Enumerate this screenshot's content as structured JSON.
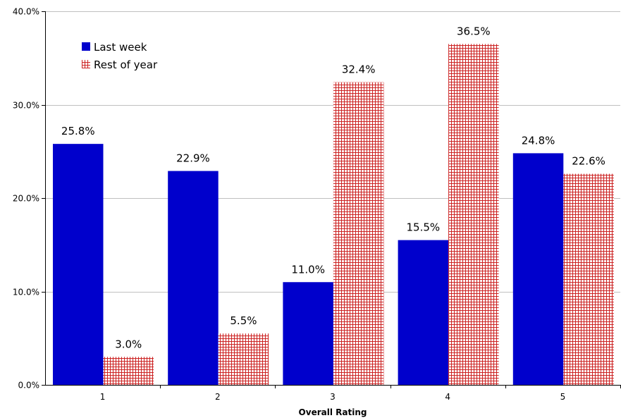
{
  "chart_data": {
    "type": "bar",
    "categories": [
      "1",
      "2",
      "3",
      "4",
      "5"
    ],
    "series": [
      {
        "name": "Last week",
        "values": [
          25.8,
          22.9,
          11.0,
          15.5,
          24.8
        ],
        "labels": [
          "25.8%",
          "22.9%",
          "11.0%",
          "15.5%",
          "24.8%"
        ],
        "color": "#0000cc",
        "pattern": "solid"
      },
      {
        "name": "Rest of year",
        "values": [
          3.0,
          5.5,
          32.4,
          36.5,
          22.6
        ],
        "labels": [
          "3.0%",
          "5.5%",
          "32.4%",
          "36.5%",
          "22.6%"
        ],
        "color": "#cc2222",
        "pattern": "grid"
      }
    ],
    "title": "",
    "xlabel": "Overall Rating",
    "ylabel": "",
    "ylim": [
      0,
      40
    ],
    "yticks": [
      0,
      10,
      20,
      30,
      40
    ],
    "ytick_labels": [
      "0.0%",
      "10.0%",
      "20.0%",
      "30.0%",
      "40.0%"
    ],
    "grid": true,
    "legend_position": "top-left"
  }
}
